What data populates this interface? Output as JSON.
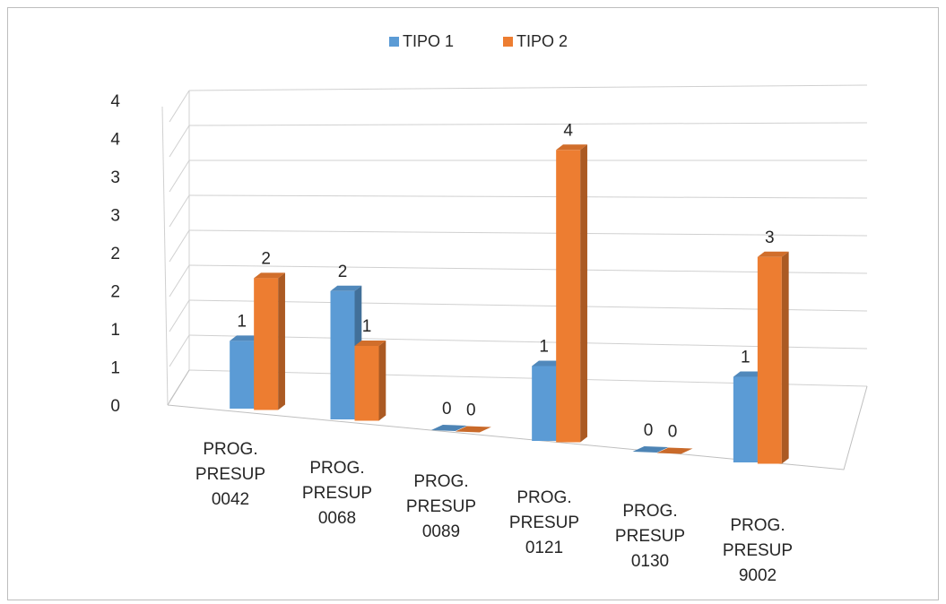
{
  "chart_data": {
    "type": "bar",
    "variant": "3d-clustered-column",
    "categories": [
      [
        "PROG.",
        "PRESUP",
        "0042"
      ],
      [
        "PROG.",
        "PRESUP",
        "0068"
      ],
      [
        "PROG.",
        "PRESUP",
        "0089"
      ],
      [
        "PROG.",
        "PRESUP",
        "0121"
      ],
      [
        "PROG.",
        "PRESUP",
        "0130"
      ],
      [
        "PROG.",
        "PRESUP",
        "9002"
      ]
    ],
    "series": [
      {
        "name": "TIPO  1",
        "color": "#5b9bd5",
        "values": [
          1,
          2,
          0,
          1,
          0,
          1
        ],
        "labels": [
          "1",
          "2",
          "0",
          "1",
          "0",
          "1"
        ]
      },
      {
        "name": "TIPO  2",
        "color": "#ed7d31",
        "values": [
          2,
          1,
          0,
          4,
          0,
          3
        ],
        "labels": [
          "2",
          "1",
          "0",
          "4",
          "0",
          "3"
        ]
      }
    ],
    "heights": [
      [
        0.95,
        1.8,
        0,
        1.05,
        0,
        1.2
      ],
      [
        1.85,
        1.05,
        0,
        4.1,
        0,
        2.9
      ]
    ],
    "yticks": [
      "0",
      "1",
      "1",
      "2",
      "2",
      "3",
      "3",
      "4",
      "4"
    ],
    "ylim": [
      0,
      4
    ],
    "grid": true,
    "legend_position": "top"
  }
}
